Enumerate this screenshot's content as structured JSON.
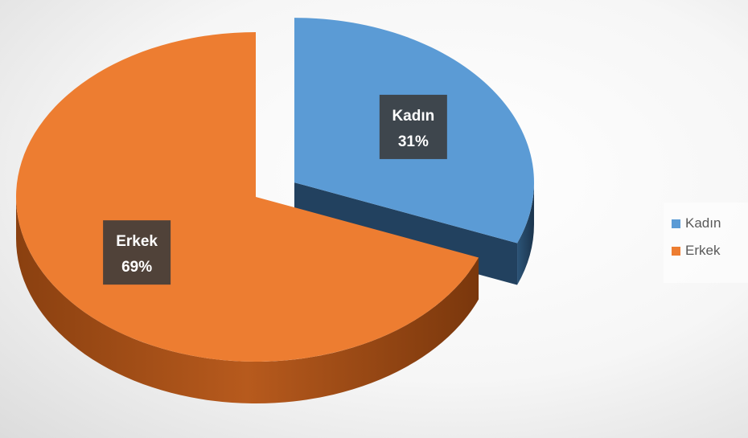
{
  "chart_data": {
    "type": "pie",
    "title": "",
    "categories": [
      "Kadın",
      "Erkek"
    ],
    "values": [
      31,
      69
    ],
    "value_labels": [
      "31%",
      "69%"
    ],
    "colors": [
      "#5b9bd5",
      "#ed7d31"
    ],
    "side_colors": [
      "#22415f",
      "#8a4010"
    ],
    "exploded": [
      true,
      false
    ],
    "style": "3d",
    "legend_position": "right"
  },
  "legend": {
    "items": [
      {
        "label": "Kadın",
        "color": "#5b9bd5"
      },
      {
        "label": "Erkek",
        "color": "#ed7d31"
      }
    ]
  }
}
